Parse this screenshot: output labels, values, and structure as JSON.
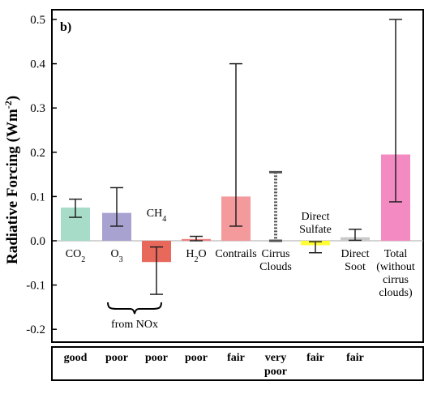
{
  "chart_data": {
    "type": "bar",
    "panel_label": "b)",
    "ylabel": "Radiative Forcing (Wm-2)",
    "ylim": [
      -0.22,
      0.52
    ],
    "yticks": [
      "0.5",
      "0.4",
      "0.3",
      "0.2",
      "0.1",
      "0.0",
      "-0.1",
      "-0.2"
    ],
    "ytick_values": [
      0.5,
      0.4,
      0.3,
      0.2,
      0.1,
      0.0,
      -0.1,
      -0.2
    ],
    "grid": false,
    "bars": [
      {
        "key": "co2",
        "label_lines": [
          "CO2"
        ],
        "value": 0.075,
        "err_low": 0.053,
        "err_high": 0.094,
        "color": "#a6dcc8",
        "understanding": [
          "good"
        ]
      },
      {
        "key": "o3",
        "label_lines": [
          "O3"
        ],
        "value": 0.063,
        "err_low": 0.033,
        "err_high": 0.12,
        "color": "#a7a2cf",
        "understanding": [
          "poor"
        ]
      },
      {
        "key": "ch4",
        "label_lines": [
          "CH4"
        ],
        "value": -0.048,
        "err_low": -0.121,
        "err_high": -0.014,
        "color": "#e8685c",
        "understanding": [
          "poor"
        ]
      },
      {
        "key": "h2o",
        "label_lines": [
          "H2O"
        ],
        "value": 0.004,
        "err_low": 0.0,
        "err_high": 0.01,
        "color": "#f08080",
        "understanding": [
          "poor"
        ]
      },
      {
        "key": "contrails",
        "label_lines": [
          "Contrails"
        ],
        "value": 0.1,
        "err_low": 0.033,
        "err_high": 0.4,
        "color": "#f4999c",
        "understanding": [
          "fair"
        ]
      },
      {
        "key": "cirrus",
        "label_lines": [
          "Cirrus",
          "Clouds"
        ],
        "value": 0.0,
        "err_low": 0.0,
        "err_high": 0.155,
        "color": "#555555",
        "dotted": true,
        "understanding": [
          "very",
          "poor"
        ]
      },
      {
        "key": "sulfate",
        "label_lines": [
          "Direct",
          "Sulfate"
        ],
        "value": -0.01,
        "err_low": -0.027,
        "err_high": -0.002,
        "color": "#ffff33",
        "understanding": [
          "fair"
        ]
      },
      {
        "key": "soot",
        "label_lines": [
          "Direct",
          "Soot"
        ],
        "value": 0.008,
        "err_low": 0.001,
        "err_high": 0.026,
        "color": "#c9c9c9",
        "understanding": [
          "fair"
        ]
      },
      {
        "key": "total",
        "label_lines": [
          "Total",
          "(without",
          "cirrus",
          "clouds)"
        ],
        "value": 0.195,
        "err_low": 0.088,
        "err_high": 0.5,
        "color": "#f48ac2",
        "understanding": []
      }
    ],
    "nox_group_label": "from NOx"
  }
}
